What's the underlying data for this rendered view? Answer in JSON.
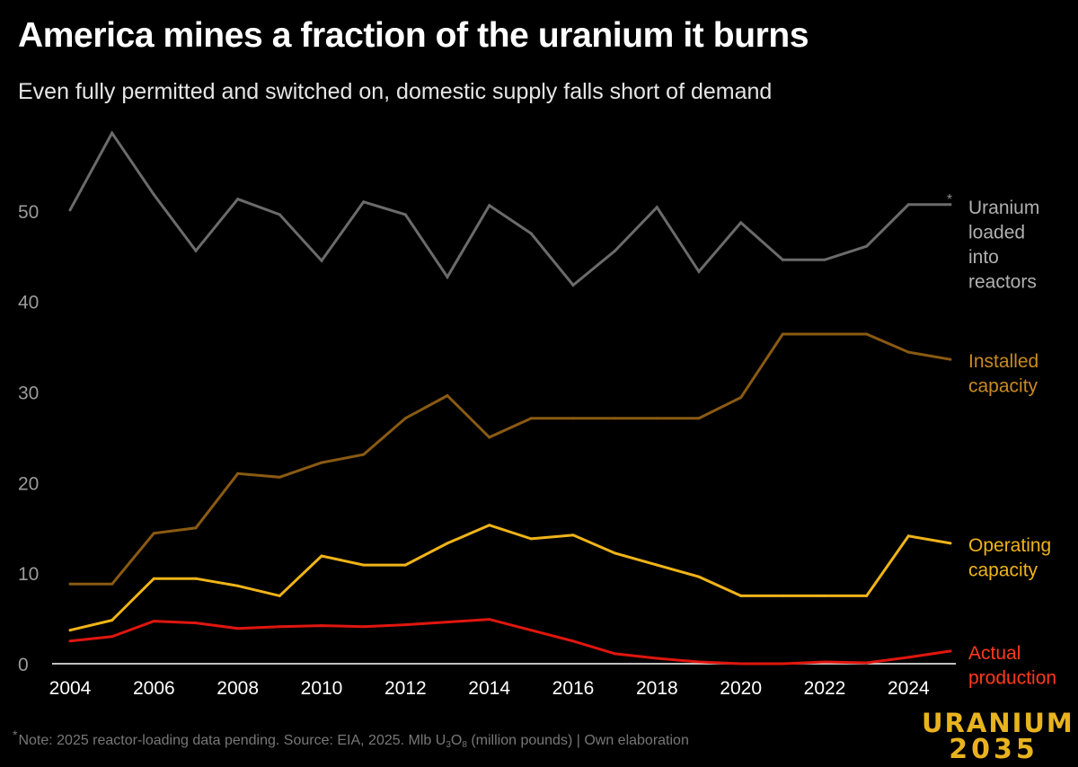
{
  "title": "America mines a fraction of the uranium it burns",
  "subtitle": "Even fully permitted and switched on, domestic supply falls short of demand",
  "note": {
    "star": "*",
    "text_before": "Note: 2025 reactor-loading data pending. Source: EIA, 2025. Mlb U",
    "sub1": "3",
    "text_mid": "O",
    "sub2": "8",
    "text_after": " (million pounds) | Own elaboration"
  },
  "brand": {
    "line1": "URANIUM",
    "line2": "2035",
    "color": "#e8b31e"
  },
  "chart_data": {
    "type": "line",
    "x": [
      2004,
      2005,
      2006,
      2007,
      2008,
      2009,
      2010,
      2011,
      2012,
      2013,
      2014,
      2015,
      2016,
      2017,
      2018,
      2019,
      2020,
      2021,
      2022,
      2023,
      2024,
      2025
    ],
    "xticks": [
      "2004",
      "2006",
      "2008",
      "2010",
      "2012",
      "2014",
      "2016",
      "2018",
      "2020",
      "2022",
      "2024"
    ],
    "yticks": [
      "0",
      "10",
      "20",
      "30",
      "40",
      "50"
    ],
    "ylim": [
      0,
      60
    ],
    "xlim": [
      2004,
      2025
    ],
    "grid": false,
    "series": [
      {
        "name": "Uranium loaded into reactors",
        "label_lines": [
          "Uranium",
          "loaded",
          "into",
          "reactors"
        ],
        "color": "#6b6b6b",
        "label_color": "#b0b0b0",
        "values": [
          50.1,
          58.6,
          51.8,
          45.6,
          51.3,
          49.6,
          44.5,
          51.0,
          49.6,
          42.7,
          50.6,
          47.5,
          41.8,
          45.6,
          50.4,
          43.3,
          48.7,
          44.6,
          44.6,
          46.1,
          50.7,
          50.7
        ],
        "marker_last": "*"
      },
      {
        "name": "Installed capacity",
        "label_lines": [
          "Installed",
          "capacity"
        ],
        "color": "#8a5a12",
        "label_color": "#c98a20",
        "values": [
          8.8,
          8.8,
          14.4,
          15.0,
          21.0,
          20.6,
          22.2,
          23.1,
          27.1,
          29.6,
          25.0,
          27.1,
          27.1,
          27.1,
          27.1,
          27.1,
          29.4,
          36.4,
          36.4,
          36.4,
          34.4,
          33.6
        ]
      },
      {
        "name": "Operating capacity",
        "label_lines": [
          "Operating",
          "capacity"
        ],
        "color": "#f0b418",
        "label_color": "#f0b418",
        "values": [
          3.7,
          4.8,
          9.4,
          9.4,
          8.6,
          7.5,
          11.9,
          10.9,
          10.9,
          13.3,
          15.3,
          13.8,
          14.2,
          12.2,
          10.9,
          9.6,
          7.5,
          7.5,
          7.5,
          7.5,
          14.1,
          13.3
        ]
      },
      {
        "name": "Actual production",
        "label_lines": [
          "Actual",
          "production"
        ],
        "color": "#e0160e",
        "label_color": "#ff3a1a",
        "values": [
          2.5,
          3.0,
          4.7,
          4.5,
          3.9,
          4.1,
          4.2,
          4.1,
          4.3,
          4.6,
          4.9,
          3.7,
          2.5,
          1.1,
          0.6,
          0.2,
          0.0,
          0.0,
          0.2,
          0.1,
          0.7,
          1.4
        ]
      }
    ]
  }
}
